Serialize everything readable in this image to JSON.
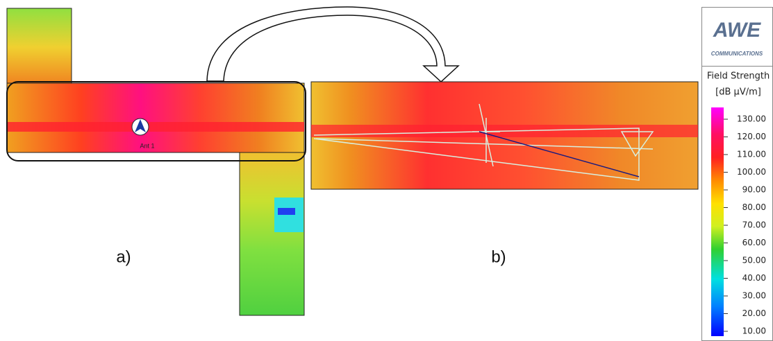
{
  "panels": {
    "a": {
      "label": "a)",
      "antenna": "Ant 1"
    },
    "b": {
      "label": "b)"
    }
  },
  "legend": {
    "logo": "AWE",
    "logo_sub": "COMMUNICATIONS",
    "title": "Field Strength",
    "unit": "[dB µV/m]",
    "ticks": [
      {
        "value": 130,
        "label": "130.00"
      },
      {
        "value": 120,
        "label": "120.00"
      },
      {
        "value": 110,
        "label": "110.00"
      },
      {
        "value": 100,
        "label": "100.00"
      },
      {
        "value": 90,
        "label": "90.00"
      },
      {
        "value": 80,
        "label": "80.00"
      },
      {
        "value": 70,
        "label": "70.00"
      },
      {
        "value": 60,
        "label": "60.00"
      },
      {
        "value": 50,
        "label": "50.00"
      },
      {
        "value": 40,
        "label": "40.00"
      },
      {
        "value": 30,
        "label": "30.00"
      },
      {
        "value": 20,
        "label": "20.00"
      },
      {
        "value": 10,
        "label": "10.00"
      }
    ]
  }
}
